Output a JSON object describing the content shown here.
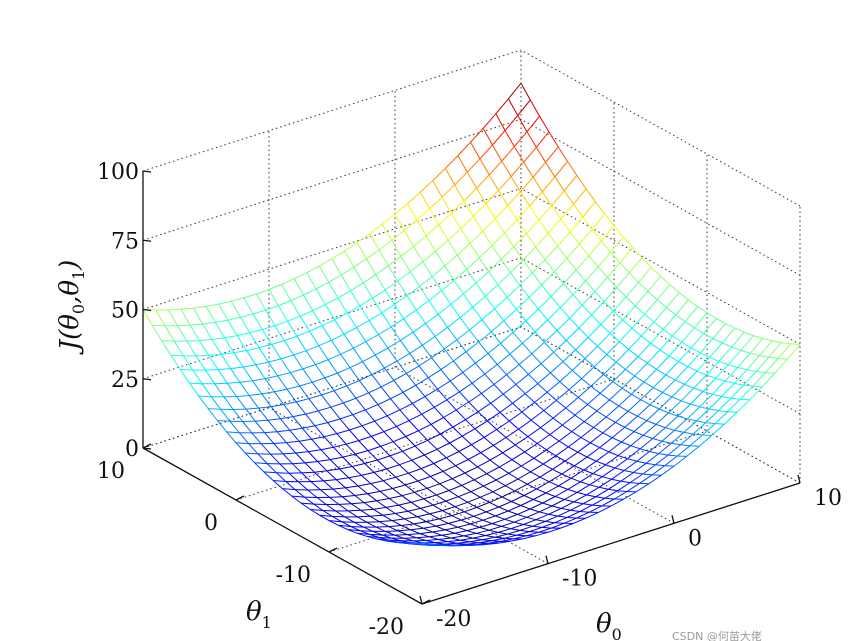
{
  "chart_data": {
    "type": "surface3d",
    "title": "",
    "zlabel": {
      "main": "J(θ",
      "sub0": "0",
      "sep": ",θ",
      "sub1": "1",
      "end": ")"
    },
    "xlabel": {
      "main": "θ",
      "sub": "0"
    },
    "ylabel": {
      "main": "θ",
      "sub": "1"
    },
    "x_range": [
      -20,
      10
    ],
    "y_range": [
      -20,
      10
    ],
    "z_range": [
      0,
      100
    ],
    "x_ticks": [
      -20,
      -10,
      0,
      10
    ],
    "y_ticks": [
      -20,
      -10,
      0,
      10
    ],
    "z_ticks": [
      0,
      25,
      50,
      75,
      100
    ],
    "x_tick_labels": [
      "-20",
      "-10",
      "0",
      "10"
    ],
    "y_tick_labels": [
      "-20",
      "-10",
      "0",
      "10"
    ],
    "z_tick_labels": [
      "0",
      "25",
      "50",
      "75",
      "100"
    ],
    "surface": {
      "function": "quadratic bowl",
      "min_point": {
        "x": -5,
        "y": -5,
        "z": 0
      },
      "corner_values": {
        "x-20_y-20": 22,
        "x10_y-20": 50,
        "x-20_y10": 50,
        "x10_y10": 88
      },
      "mesh_steps": 30,
      "colormap": "jet"
    },
    "grid": true,
    "grid_style": "dotted",
    "box": "open"
  },
  "watermark": "CSDN @何苗大佬"
}
